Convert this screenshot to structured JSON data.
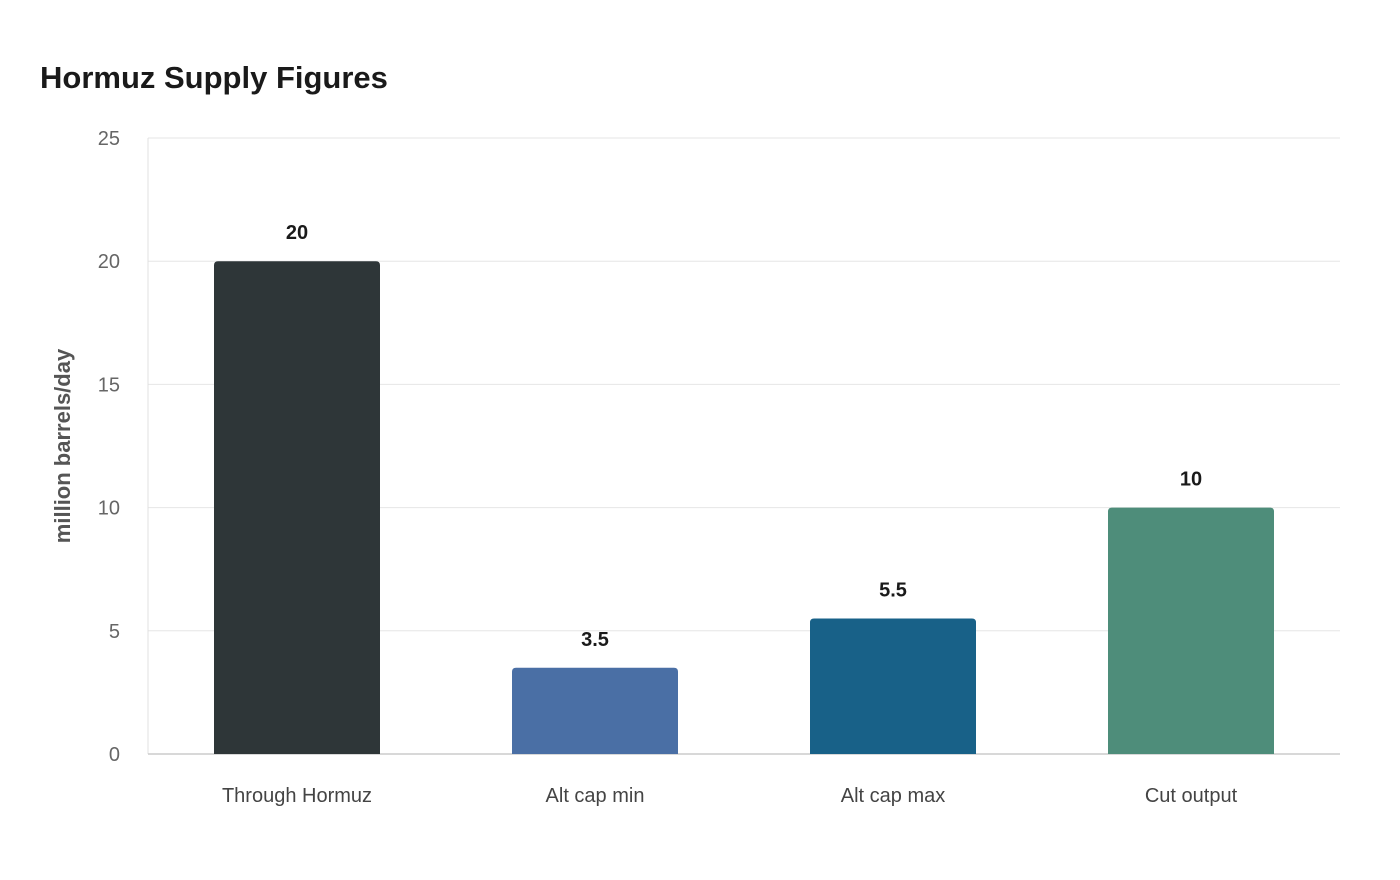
{
  "chart_data": {
    "type": "bar",
    "title": "Hormuz Supply Figures",
    "xlabel": "",
    "ylabel": "million barrels/day",
    "categories": [
      "Through Hormuz",
      "Alt cap min",
      "Alt cap max",
      "Cut output"
    ],
    "values": [
      20,
      3.5,
      5.5,
      10
    ],
    "value_labels": [
      "20",
      "3.5",
      "5.5",
      "10"
    ],
    "ylim": [
      0,
      25
    ],
    "yticks": [
      0,
      5,
      10,
      15,
      20,
      25
    ],
    "grid": true,
    "legend": "none",
    "bar_colors": [
      "#2e3638",
      "#4a6fa5",
      "#186188",
      "#4e8d7a"
    ]
  }
}
